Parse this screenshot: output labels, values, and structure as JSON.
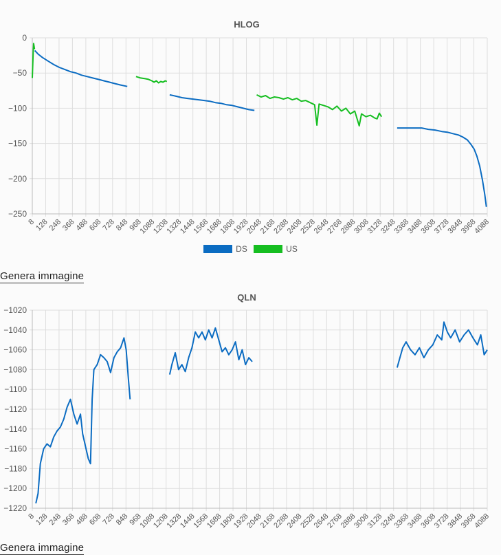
{
  "charts": {
    "hlog": {
      "title": "HLOG",
      "legend": [
        {
          "name": "DS",
          "color": "#0b6cc2"
        },
        {
          "name": "US",
          "color": "#16be21"
        }
      ]
    },
    "qln": {
      "title": "QLN"
    }
  },
  "links": {
    "generate_image_1": "Genera immagine",
    "generate_image_2": "Genera immagine"
  },
  "chart_data": [
    {
      "type": "line",
      "title": "HLOG",
      "xlabel": "",
      "ylabel": "",
      "xlim": [
        8,
        4088
      ],
      "ylim": [
        -250,
        0
      ],
      "yticks": [
        0,
        -50,
        -100,
        -150,
        -200,
        -250
      ],
      "xticks": [
        8,
        128,
        248,
        368,
        488,
        608,
        728,
        848,
        968,
        1088,
        1208,
        1328,
        1448,
        1568,
        1688,
        1808,
        1928,
        2048,
        2168,
        2288,
        2408,
        2528,
        2648,
        2768,
        2888,
        3008,
        3128,
        3248,
        3368,
        3488,
        3608,
        3728,
        3848,
        3968,
        4088
      ],
      "grid": true,
      "legend_position": "bottom",
      "series": [
        {
          "name": "DS",
          "color": "#0b6cc2",
          "segments": [
            [
              [
                30,
                -18
              ],
              [
                60,
                -23
              ],
              [
                100,
                -28
              ],
              [
                150,
                -33
              ],
              [
                200,
                -38
              ],
              [
                250,
                -42
              ],
              [
                300,
                -45
              ],
              [
                350,
                -48
              ],
              [
                400,
                -50
              ],
              [
                450,
                -53
              ],
              [
                500,
                -55
              ],
              [
                550,
                -57
              ],
              [
                600,
                -59
              ],
              [
                650,
                -61
              ],
              [
                700,
                -63
              ],
              [
                750,
                -65
              ],
              [
                800,
                -67
              ],
              [
                860,
                -69
              ]
            ],
            [
              [
                1240,
                -81
              ],
              [
                1300,
                -83
              ],
              [
                1350,
                -85
              ],
              [
                1400,
                -86
              ],
              [
                1450,
                -87
              ],
              [
                1500,
                -88
              ],
              [
                1550,
                -89
              ],
              [
                1600,
                -90
              ],
              [
                1650,
                -92
              ],
              [
                1700,
                -93
              ],
              [
                1750,
                -95
              ],
              [
                1800,
                -96
              ],
              [
                1850,
                -98
              ],
              [
                1900,
                -100
              ],
              [
                1950,
                -102
              ],
              [
                2000,
                -103
              ]
            ],
            [
              [
                3280,
                -128
              ],
              [
                3350,
                -128
              ],
              [
                3420,
                -128
              ],
              [
                3500,
                -128
              ],
              [
                3560,
                -130
              ],
              [
                3620,
                -131
              ],
              [
                3680,
                -133
              ],
              [
                3730,
                -134
              ],
              [
                3780,
                -136
              ],
              [
                3830,
                -138
              ],
              [
                3870,
                -141
              ],
              [
                3910,
                -145
              ],
              [
                3940,
                -151
              ],
              [
                3970,
                -158
              ],
              [
                3995,
                -168
              ],
              [
                4020,
                -182
              ],
              [
                4045,
                -202
              ],
              [
                4065,
                -222
              ],
              [
                4080,
                -240
              ]
            ]
          ]
        },
        {
          "name": "US",
          "color": "#16be21",
          "segments": [
            [
              [
                8,
                -57
              ],
              [
                12,
                -40
              ],
              [
                16,
                -20
              ],
              [
                20,
                -8
              ],
              [
                24,
                -12
              ],
              [
                28,
                -16
              ]
            ],
            [
              [
                938,
                -55
              ],
              [
                980,
                -57
              ],
              [
                1020,
                -58
              ],
              [
                1050,
                -59
              ],
              [
                1080,
                -61
              ],
              [
                1100,
                -63
              ],
              [
                1120,
                -61
              ],
              [
                1140,
                -64
              ],
              [
                1160,
                -62
              ],
              [
                1180,
                -63
              ],
              [
                1200,
                -61
              ],
              [
                1215,
                -62
              ]
            ],
            [
              [
                2020,
                -81
              ],
              [
                2060,
                -84
              ],
              [
                2100,
                -82
              ],
              [
                2140,
                -86
              ],
              [
                2180,
                -84
              ],
              [
                2220,
                -85
              ],
              [
                2260,
                -87
              ],
              [
                2300,
                -85
              ],
              [
                2340,
                -88
              ],
              [
                2380,
                -86
              ],
              [
                2420,
                -90
              ],
              [
                2460,
                -89
              ],
              [
                2500,
                -92
              ],
              [
                2540,
                -95
              ],
              [
                2560,
                -124
              ],
              [
                2580,
                -94
              ],
              [
                2620,
                -96
              ],
              [
                2660,
                -98
              ],
              [
                2700,
                -102
              ],
              [
                2740,
                -97
              ],
              [
                2780,
                -104
              ],
              [
                2820,
                -100
              ],
              [
                2860,
                -108
              ],
              [
                2900,
                -104
              ],
              [
                2940,
                -125
              ],
              [
                2960,
                -108
              ],
              [
                3000,
                -112
              ],
              [
                3040,
                -110
              ],
              [
                3080,
                -114
              ],
              [
                3100,
                -115
              ],
              [
                3120,
                -107
              ],
              [
                3140,
                -112
              ]
            ]
          ]
        }
      ]
    },
    {
      "type": "line",
      "title": "QLN",
      "xlabel": "",
      "ylabel": "",
      "xlim": [
        8,
        4088
      ],
      "ylim": [
        -1220,
        -1020
      ],
      "yticks": [
        -1020,
        -1040,
        -1060,
        -1080,
        -1100,
        -1120,
        -1140,
        -1160,
        -1180,
        -1200,
        -1220
      ],
      "xticks": [
        8,
        128,
        248,
        368,
        488,
        608,
        728,
        848,
        968,
        1088,
        1208,
        1328,
        1448,
        1568,
        1688,
        1808,
        1928,
        2048,
        2168,
        2288,
        2408,
        2528,
        2648,
        2768,
        2888,
        3008,
        3128,
        3248,
        3368,
        3488,
        3608,
        3728,
        3848,
        3968,
        4088
      ],
      "grid": true,
      "series": [
        {
          "name": "",
          "color": "#0b6cc2",
          "segments": [
            [
              [
                40,
                -1215
              ],
              [
                60,
                -1205
              ],
              [
                80,
                -1175
              ],
              [
                110,
                -1160
              ],
              [
                140,
                -1155
              ],
              [
                170,
                -1158
              ],
              [
                200,
                -1148
              ],
              [
                230,
                -1142
              ],
              [
                260,
                -1138
              ],
              [
                290,
                -1130
              ],
              [
                320,
                -1118
              ],
              [
                350,
                -1110
              ],
              [
                380,
                -1125
              ],
              [
                410,
                -1135
              ],
              [
                440,
                -1125
              ],
              [
                460,
                -1145
              ],
              [
                490,
                -1160
              ],
              [
                510,
                -1170
              ],
              [
                530,
                -1175
              ],
              [
                545,
                -1110
              ],
              [
                560,
                -1080
              ],
              [
                590,
                -1075
              ],
              [
                620,
                -1065
              ],
              [
                650,
                -1068
              ],
              [
                680,
                -1072
              ],
              [
                710,
                -1083
              ],
              [
                740,
                -1068
              ],
              [
                770,
                -1062
              ],
              [
                800,
                -1058
              ],
              [
                830,
                -1048
              ],
              [
                850,
                -1060
              ],
              [
                870,
                -1090
              ],
              [
                885,
                -1110
              ]
            ],
            [
              [
                1240,
                -1085
              ],
              [
                1260,
                -1075
              ],
              [
                1290,
                -1063
              ],
              [
                1320,
                -1080
              ],
              [
                1350,
                -1075
              ],
              [
                1380,
                -1082
              ],
              [
                1410,
                -1068
              ],
              [
                1440,
                -1058
              ],
              [
                1470,
                -1042
              ],
              [
                1500,
                -1048
              ],
              [
                1530,
                -1042
              ],
              [
                1560,
                -1050
              ],
              [
                1590,
                -1040
              ],
              [
                1620,
                -1048
              ],
              [
                1650,
                -1038
              ],
              [
                1680,
                -1050
              ],
              [
                1710,
                -1062
              ],
              [
                1740,
                -1058
              ],
              [
                1770,
                -1065
              ],
              [
                1800,
                -1060
              ],
              [
                1830,
                -1052
              ],
              [
                1860,
                -1070
              ],
              [
                1890,
                -1060
              ],
              [
                1920,
                -1075
              ],
              [
                1950,
                -1068
              ],
              [
                1980,
                -1072
              ]
            ],
            [
              [
                3280,
                -1078
              ],
              [
                3300,
                -1070
              ],
              [
                3330,
                -1058
              ],
              [
                3360,
                -1052
              ],
              [
                3400,
                -1060
              ],
              [
                3440,
                -1065
              ],
              [
                3480,
                -1058
              ],
              [
                3520,
                -1068
              ],
              [
                3560,
                -1060
              ],
              [
                3600,
                -1055
              ],
              [
                3640,
                -1045
              ],
              [
                3680,
                -1050
              ],
              [
                3700,
                -1032
              ],
              [
                3730,
                -1042
              ],
              [
                3760,
                -1048
              ],
              [
                3800,
                -1040
              ],
              [
                3840,
                -1052
              ],
              [
                3880,
                -1045
              ],
              [
                3920,
                -1040
              ],
              [
                3960,
                -1048
              ],
              [
                4000,
                -1055
              ],
              [
                4030,
                -1045
              ],
              [
                4060,
                -1065
              ],
              [
                4088,
                -1060
              ]
            ]
          ]
        }
      ]
    }
  ]
}
